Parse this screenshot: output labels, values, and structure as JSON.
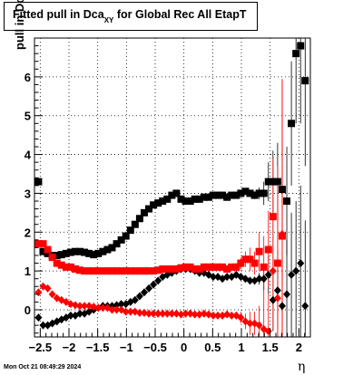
{
  "chart_data": {
    "type": "scatter",
    "title": "Fitted pull in Dca",
    "title_subscript": "XY",
    "title_suffix": "for Global Rec All EtapT",
    "ylabel": "pull in Dca",
    "ylabel_subscript": "XY",
    "xlabel": "η",
    "xlim": [
      -2.6,
      2.2
    ],
    "ylim": [
      -0.7,
      7.0
    ],
    "x_ticks": [
      -2.5,
      -2,
      -1.5,
      -1,
      -0.5,
      0,
      0.5,
      1,
      1.5,
      2
    ],
    "x_tick_labels": [
      "−2.5",
      "−2",
      "−1.5",
      "−1",
      "−0.5",
      "0",
      "0.5",
      "1",
      "1.5",
      "2"
    ],
    "y_ticks": [
      0,
      1,
      2,
      3,
      4,
      5,
      6
    ],
    "y_tick_labels": [
      "0",
      "1",
      "2",
      "3",
      "4",
      "5",
      "6"
    ],
    "grid": true,
    "series": [
      {
        "color": "#000000",
        "marker": "square",
        "x": [
          -2.53,
          -2.45,
          -2.37,
          -2.29,
          -2.21,
          -2.13,
          -2.05,
          -1.97,
          -1.89,
          -1.81,
          -1.73,
          -1.65,
          -1.57,
          -1.49,
          -1.41,
          -1.33,
          -1.25,
          -1.17,
          -1.09,
          -1.01,
          -0.93,
          -0.85,
          -0.77,
          -0.69,
          -0.61,
          -0.53,
          -0.45,
          -0.37,
          -0.29,
          -0.21,
          -0.13,
          -0.05,
          0.03,
          0.11,
          0.19,
          0.27,
          0.35,
          0.43,
          0.51,
          0.59,
          0.67,
          0.75,
          0.83,
          0.91,
          0.99,
          1.07,
          1.15,
          1.23,
          1.31,
          1.39,
          1.47,
          1.55,
          1.63,
          1.71,
          1.79,
          1.87,
          1.95,
          2.03,
          2.11
        ],
        "y": [
          3.3,
          1.5,
          1.45,
          1.4,
          1.4,
          1.42,
          1.45,
          1.48,
          1.5,
          1.5,
          1.48,
          1.45,
          1.42,
          1.45,
          1.5,
          1.55,
          1.6,
          1.7,
          1.8,
          1.9,
          2.05,
          2.2,
          2.35,
          2.5,
          2.6,
          2.7,
          2.75,
          2.8,
          2.85,
          2.95,
          3.0,
          2.85,
          2.8,
          2.8,
          2.85,
          2.85,
          2.9,
          2.9,
          2.95,
          2.95,
          2.95,
          2.9,
          2.95,
          2.95,
          3.0,
          3.05,
          3.0,
          2.95,
          3.0,
          3.0,
          3.3,
          3.3,
          3.3,
          3.1,
          2.8,
          4.8,
          6.6,
          6.8,
          5.9
        ],
        "err": [
          0.1,
          0.04,
          0.03,
          0.03,
          0.03,
          0.03,
          0.03,
          0.03,
          0.03,
          0.03,
          0.03,
          0.03,
          0.03,
          0.03,
          0.03,
          0.03,
          0.03,
          0.03,
          0.03,
          0.03,
          0.03,
          0.03,
          0.03,
          0.03,
          0.03,
          0.03,
          0.03,
          0.03,
          0.03,
          0.03,
          0.03,
          0.03,
          0.03,
          0.03,
          0.03,
          0.03,
          0.03,
          0.03,
          0.03,
          0.03,
          0.03,
          0.03,
          0.04,
          0.04,
          0.05,
          0.06,
          0.08,
          0.1,
          0.15,
          0.3,
          0.5,
          0.8,
          1.0,
          1.2,
          1.4,
          1.6,
          1.8,
          2.0,
          2.2
        ]
      },
      {
        "color": "#000000",
        "marker": "diamond",
        "x": [
          -2.53,
          -2.45,
          -2.37,
          -2.29,
          -2.21,
          -2.13,
          -2.05,
          -1.97,
          -1.89,
          -1.81,
          -1.73,
          -1.65,
          -1.57,
          -1.49,
          -1.41,
          -1.33,
          -1.25,
          -1.17,
          -1.09,
          -1.01,
          -0.93,
          -0.85,
          -0.77,
          -0.69,
          -0.61,
          -0.53,
          -0.45,
          -0.37,
          -0.29,
          -0.21,
          -0.13,
          -0.05,
          0.03,
          0.11,
          0.19,
          0.27,
          0.35,
          0.43,
          0.51,
          0.59,
          0.67,
          0.75,
          0.83,
          0.91,
          0.99,
          1.07,
          1.15,
          1.23,
          1.31,
          1.39,
          1.47,
          1.55,
          1.63,
          1.71,
          1.79,
          1.87,
          1.95,
          2.03,
          2.11
        ],
        "y": [
          -0.2,
          -0.4,
          -0.4,
          -0.35,
          -0.3,
          -0.25,
          -0.2,
          -0.15,
          -0.15,
          -0.1,
          -0.1,
          -0.05,
          0.0,
          0.05,
          0.1,
          0.1,
          0.1,
          0.12,
          0.15,
          0.15,
          0.2,
          0.25,
          0.35,
          0.45,
          0.55,
          0.65,
          0.75,
          0.85,
          0.9,
          0.95,
          1.0,
          1.05,
          1.05,
          1.05,
          1.0,
          0.95,
          0.95,
          0.9,
          0.85,
          0.85,
          0.8,
          0.85,
          0.85,
          0.9,
          0.85,
          0.8,
          0.75,
          0.75,
          0.8,
          0.8,
          0.9,
          0.25,
          0.5,
          0.1,
          0.4,
          0.9,
          1.0,
          1.2,
          0.1
        ],
        "err": [
          0.05,
          0.03,
          0.03,
          0.03,
          0.03,
          0.03,
          0.03,
          0.03,
          0.03,
          0.03,
          0.03,
          0.03,
          0.03,
          0.03,
          0.03,
          0.03,
          0.03,
          0.03,
          0.03,
          0.03,
          0.03,
          0.03,
          0.03,
          0.03,
          0.03,
          0.03,
          0.03,
          0.03,
          0.03,
          0.03,
          0.03,
          0.03,
          0.03,
          0.03,
          0.03,
          0.03,
          0.03,
          0.03,
          0.03,
          0.03,
          0.03,
          0.03,
          0.04,
          0.04,
          0.05,
          0.06,
          0.08,
          0.1,
          0.15,
          0.3,
          0.5,
          0.8,
          1.0,
          1.2,
          1.4,
          1.6,
          1.8,
          2.0,
          2.2
        ]
      },
      {
        "color": "#ff0000",
        "marker": "square",
        "x": [
          -2.53,
          -2.45,
          -2.37,
          -2.29,
          -2.21,
          -2.13,
          -2.05,
          -1.97,
          -1.89,
          -1.81,
          -1.73,
          -1.65,
          -1.57,
          -1.49,
          -1.41,
          -1.33,
          -1.25,
          -1.17,
          -1.09,
          -1.01,
          -0.93,
          -0.85,
          -0.77,
          -0.69,
          -0.61,
          -0.53,
          -0.45,
          -0.37,
          -0.29,
          -0.21,
          -0.13,
          -0.05,
          0.03,
          0.11,
          0.19,
          0.27,
          0.35,
          0.43,
          0.51,
          0.59,
          0.67,
          0.75,
          0.83,
          0.91,
          0.99,
          1.07,
          1.15,
          1.23,
          1.31,
          1.39,
          1.47,
          1.55,
          1.63,
          1.71
        ],
        "y": [
          1.7,
          1.7,
          1.55,
          1.35,
          1.2,
          1.15,
          1.1,
          1.1,
          1.05,
          1.02,
          1.0,
          1.0,
          1.0,
          1.0,
          1.0,
          1.0,
          1.0,
          1.0,
          1.0,
          1.0,
          1.0,
          1.0,
          1.0,
          1.0,
          1.0,
          1.0,
          1.02,
          1.05,
          1.05,
          1.05,
          1.05,
          1.08,
          1.1,
          1.1,
          1.05,
          1.05,
          1.1,
          1.1,
          1.1,
          1.1,
          1.1,
          1.05,
          1.1,
          1.1,
          1.2,
          1.3,
          1.3,
          1.2,
          1.5,
          1.1,
          1.55,
          2.4,
          1.2,
          1.9
        ],
        "err": [
          0.08,
          0.05,
          0.04,
          0.04,
          0.03,
          0.03,
          0.03,
          0.03,
          0.03,
          0.03,
          0.03,
          0.03,
          0.03,
          0.03,
          0.03,
          0.03,
          0.03,
          0.03,
          0.03,
          0.03,
          0.03,
          0.03,
          0.03,
          0.03,
          0.03,
          0.03,
          0.03,
          0.03,
          0.03,
          0.03,
          0.03,
          0.03,
          0.03,
          0.03,
          0.03,
          0.03,
          0.03,
          0.03,
          0.03,
          0.03,
          0.04,
          0.05,
          0.08,
          0.1,
          0.15,
          0.2,
          0.3,
          0.3,
          0.5,
          0.8,
          1.0,
          1.5,
          2.5,
          4.0
        ]
      },
      {
        "color": "#ff0000",
        "marker": "diamond",
        "x": [
          -2.53,
          -2.45,
          -2.37,
          -2.29,
          -2.21,
          -2.13,
          -2.05,
          -1.97,
          -1.89,
          -1.81,
          -1.73,
          -1.65,
          -1.57,
          -1.49,
          -1.41,
          -1.33,
          -1.25,
          -1.17,
          -1.09,
          -1.01,
          -0.93,
          -0.85,
          -0.77,
          -0.69,
          -0.61,
          -0.53,
          -0.45,
          -0.37,
          -0.29,
          -0.21,
          -0.13,
          -0.05,
          0.03,
          0.11,
          0.19,
          0.27,
          0.35,
          0.43,
          0.51,
          0.59,
          0.67,
          0.75,
          0.83,
          0.91,
          0.99,
          1.07,
          1.15,
          1.23,
          1.31,
          1.39,
          1.47,
          1.55,
          1.63,
          1.71
        ],
        "y": [
          0.45,
          0.6,
          0.55,
          0.4,
          0.3,
          0.25,
          0.2,
          0.15,
          0.12,
          0.1,
          0.1,
          0.1,
          0.08,
          0.05,
          0.05,
          0.05,
          0.0,
          0.0,
          0.0,
          -0.05,
          -0.05,
          -0.05,
          -0.08,
          -0.08,
          -0.1,
          -0.1,
          -0.1,
          -0.1,
          -0.1,
          -0.1,
          -0.1,
          -0.12,
          -0.1,
          -0.1,
          -0.12,
          -0.12,
          -0.1,
          -0.12,
          -0.15,
          -0.15,
          -0.15,
          -0.12,
          -0.15,
          -0.15,
          -0.2,
          -0.3,
          -0.35,
          -0.35,
          -0.4,
          -0.5,
          -0.55,
          1.0,
          0.3,
          1.95
        ],
        "err": [
          0.08,
          0.05,
          0.04,
          0.04,
          0.03,
          0.03,
          0.03,
          0.03,
          0.03,
          0.03,
          0.03,
          0.03,
          0.03,
          0.03,
          0.03,
          0.03,
          0.03,
          0.03,
          0.03,
          0.03,
          0.03,
          0.03,
          0.03,
          0.03,
          0.03,
          0.03,
          0.03,
          0.03,
          0.03,
          0.03,
          0.03,
          0.03,
          0.03,
          0.03,
          0.03,
          0.03,
          0.03,
          0.03,
          0.03,
          0.03,
          0.04,
          0.05,
          0.08,
          0.1,
          0.15,
          0.2,
          0.3,
          0.3,
          0.5,
          0.8,
          1.0,
          1.5,
          2.5,
          4.0
        ]
      }
    ]
  },
  "footer": {
    "timestamp": "Mon Oct 21 08:49:29 2024"
  }
}
